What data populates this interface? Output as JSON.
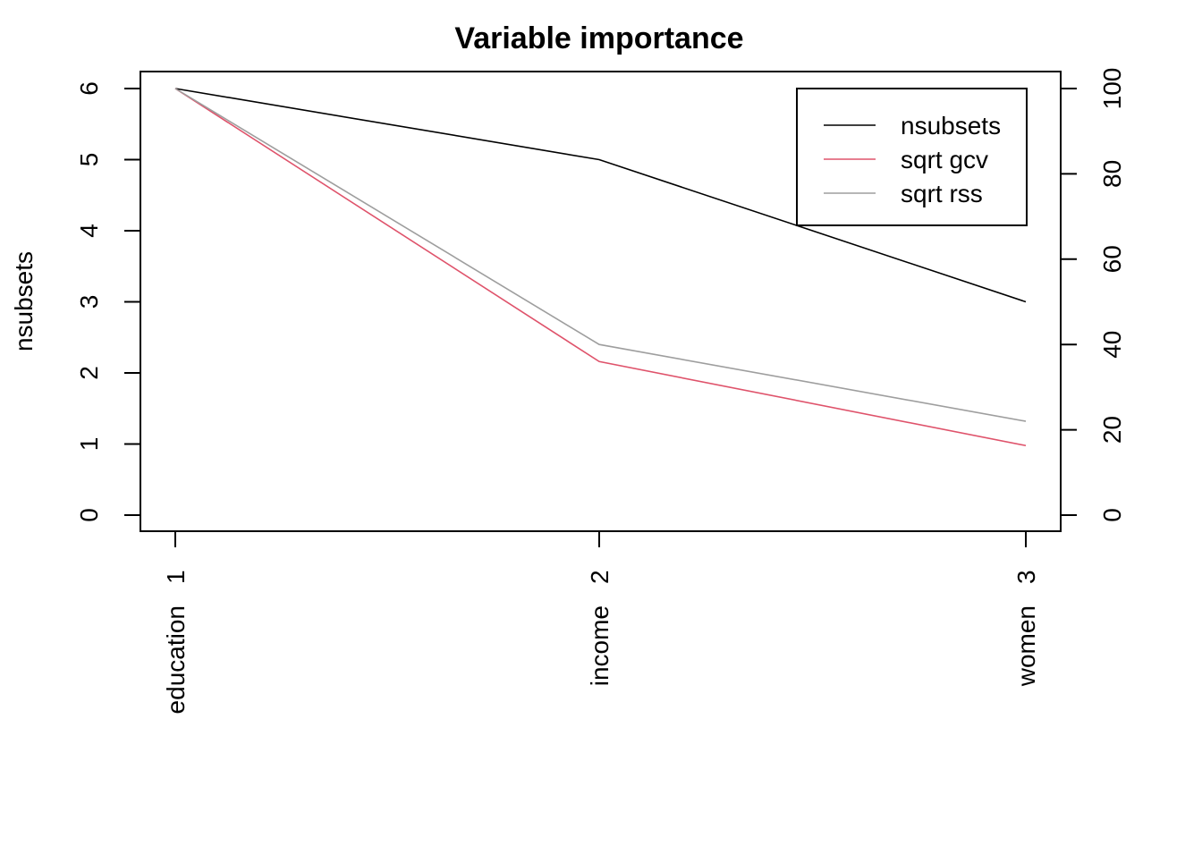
{
  "chart_data": {
    "type": "line",
    "title": "Variable importance",
    "ylabel": "nsubsets",
    "categories": [
      "1",
      "2",
      "3"
    ],
    "category_labels": [
      "education",
      "income",
      "women"
    ],
    "ylim_left": [
      0,
      6
    ],
    "yticks_left": [
      0,
      1,
      2,
      3,
      4,
      5,
      6
    ],
    "ylim_right": [
      0,
      100
    ],
    "yticks_right": [
      0,
      20,
      40,
      60,
      80,
      100
    ],
    "grid": false,
    "legend_position": "top-right",
    "series": [
      {
        "name": "nsubsets",
        "axis": "left",
        "color": "#000000",
        "values": [
          6,
          5,
          3
        ]
      },
      {
        "name": "sqrt gcv",
        "axis": "right",
        "color": "#DF536B",
        "values": [
          100,
          36,
          16.3
        ]
      },
      {
        "name": "sqrt rss",
        "axis": "right",
        "color": "#9E9E9E",
        "values": [
          100,
          40,
          22
        ]
      }
    ]
  }
}
